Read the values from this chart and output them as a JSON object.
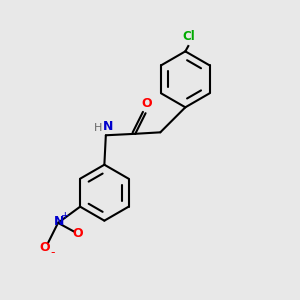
{
  "background_color": "#e8e8e8",
  "bond_color": "#000000",
  "cl_color": "#00aa00",
  "o_color": "#ff0000",
  "n_color": "#0000cc",
  "h_color": "#666666",
  "line_width": 1.5,
  "figsize": [
    3.0,
    3.0
  ],
  "dpi": 100,
  "xlim": [
    0,
    10
  ],
  "ylim": [
    0,
    10
  ]
}
